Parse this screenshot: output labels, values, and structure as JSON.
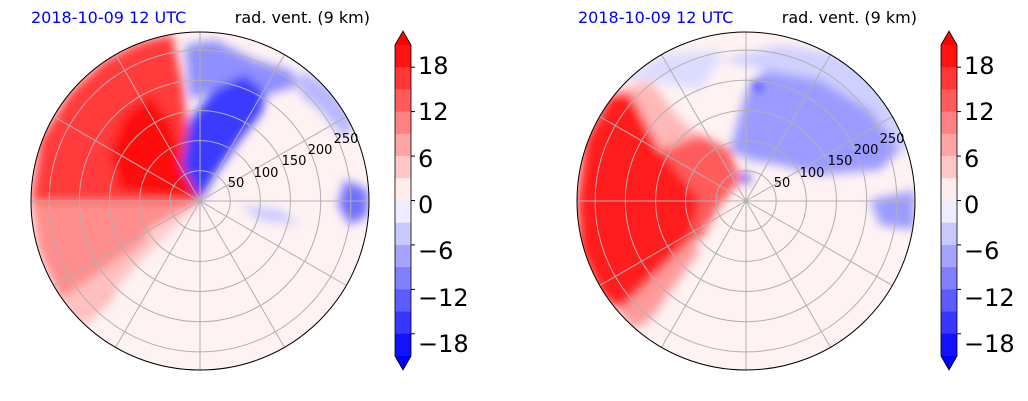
{
  "chart_data": [
    {
      "type": "heatmap",
      "projection": "polar",
      "title_left": "2018-10-09 12 UTC",
      "title_right": "rad. vent. (9 km)",
      "title_left_color": "#0000ff",
      "radial_ticks": [
        "50",
        "100",
        "150",
        "200",
        "250"
      ],
      "radial_tick_values": [
        50,
        100,
        150,
        200,
        250
      ],
      "grid": true,
      "colorbar": {
        "ticks": [
          "18",
          "12",
          "6",
          "0",
          "−6",
          "−12",
          "−18"
        ],
        "tick_values": [
          18,
          12,
          6,
          0,
          -6,
          -12,
          -18
        ],
        "range": [
          -21,
          21
        ],
        "extend": "both",
        "colormap": "bwr",
        "low_color": "#0000ff",
        "high_color": "#ff0000"
      },
      "regions": [
        {
          "sign": "positive",
          "magnitude": "strong",
          "azimuth_deg": [
            110,
            180
          ],
          "range_km": [
            0,
            280
          ]
        },
        {
          "sign": "negative",
          "magnitude": "strong",
          "azimuth_deg": [
            40,
            90
          ],
          "range_km": [
            0,
            230
          ]
        },
        {
          "sign": "positive",
          "magnitude": "moderate",
          "azimuth_deg": [
            180,
            235
          ],
          "range_km": [
            0,
            240
          ]
        },
        {
          "sign": "negative",
          "magnitude": "moderate",
          "azimuth_deg": [
            0,
            40
          ],
          "range_km": [
            150,
            280
          ]
        }
      ]
    },
    {
      "type": "heatmap",
      "projection": "polar",
      "title_left": "2018-10-09 12 UTC",
      "title_right": "rad. vent. (9 km)",
      "title_left_color": "#0000ff",
      "radial_ticks": [
        "50",
        "100",
        "150",
        "200",
        "250"
      ],
      "radial_tick_values": [
        50,
        100,
        150,
        200,
        250
      ],
      "grid": true,
      "colorbar": {
        "ticks": [
          "18",
          "12",
          "6",
          "0",
          "−6",
          "−12",
          "−18"
        ],
        "tick_values": [
          18,
          12,
          6,
          0,
          -6,
          -12,
          -18
        ],
        "range": [
          -21,
          21
        ],
        "extend": "both",
        "colormap": "bwr",
        "low_color": "#0000ff",
        "high_color": "#ff0000"
      },
      "regions": [
        {
          "sign": "positive",
          "magnitude": "strong",
          "azimuth_deg": [
            145,
            215
          ],
          "range_km": [
            40,
            280
          ]
        },
        {
          "sign": "negative",
          "magnitude": "moderate",
          "azimuth_deg": [
            20,
            110
          ],
          "range_km": [
            40,
            260
          ]
        },
        {
          "sign": "negative",
          "magnitude": "weak",
          "azimuth_deg": [
            -20,
            10
          ],
          "range_km": [
            200,
            280
          ]
        }
      ]
    }
  ]
}
